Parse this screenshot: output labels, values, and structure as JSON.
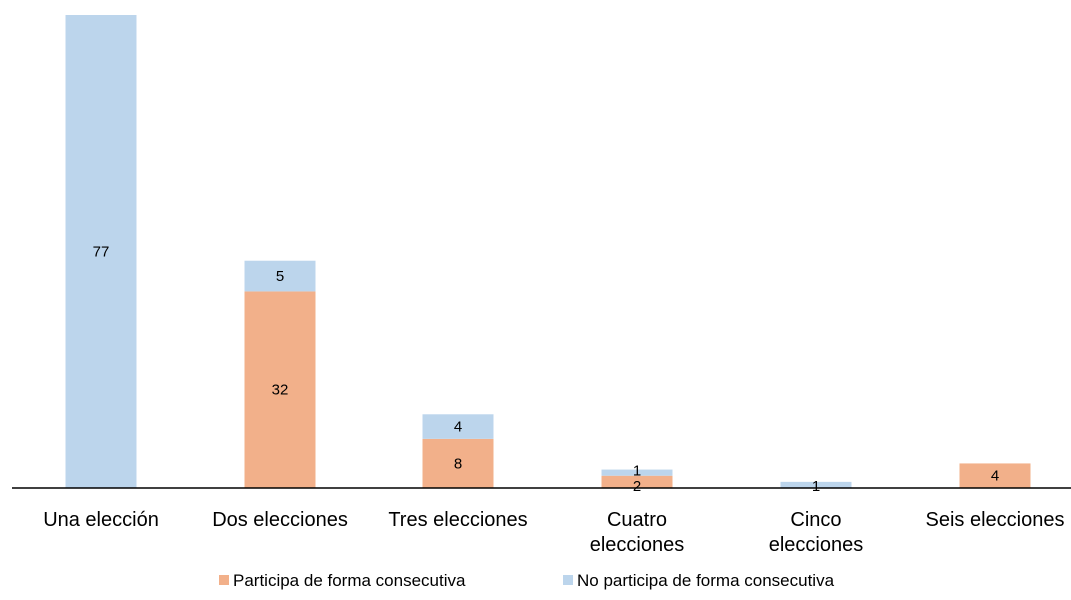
{
  "chart_data": {
    "type": "bar",
    "stacked": true,
    "categories": [
      [
        "Una elección"
      ],
      [
        "Dos elecciones"
      ],
      [
        "Tres elecciones"
      ],
      [
        "Cuatro",
        "elecciones"
      ],
      [
        "Cinco",
        "elecciones"
      ],
      [
        "Seis elecciones"
      ]
    ],
    "series": [
      {
        "name": "Participa de forma consecutiva",
        "color": "#F2B08A",
        "values": [
          0,
          32,
          8,
          2,
          0,
          4
        ],
        "labels": [
          "",
          "32",
          "8",
          "2",
          "",
          "4"
        ]
      },
      {
        "name": "No participa de forma consecutiva",
        "color": "#BCD5EC",
        "values": [
          77,
          5,
          4,
          1,
          1,
          0
        ],
        "labels": [
          "77",
          "5",
          "4",
          "1",
          "1",
          ""
        ]
      }
    ],
    "ylim": [
      0,
      77
    ],
    "grid": false,
    "legend": "bottom",
    "axis_color": "#000000"
  }
}
